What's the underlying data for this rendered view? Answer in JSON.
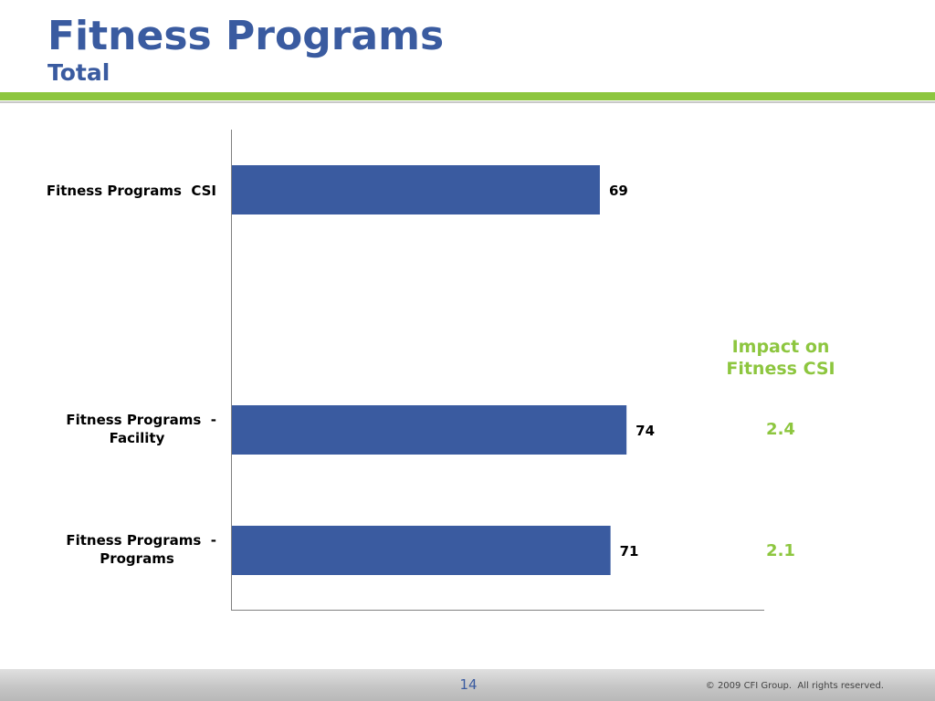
{
  "header": {
    "title": "Fitness Programs",
    "subtitle": "Total"
  },
  "chart_data": {
    "type": "bar",
    "orientation": "horizontal",
    "title": "Fitness Programs",
    "subtitle": "Total",
    "categories": [
      [
        "Fitness Programs  CSI"
      ],
      [
        "Fitness Programs  -",
        "Facility"
      ],
      [
        "Fitness Programs  -",
        "Programs"
      ]
    ],
    "values": [
      69,
      74,
      71
    ],
    "value_labels": [
      "69",
      "74",
      "71"
    ],
    "xlim": [
      0,
      100
    ],
    "bar_color": "#3A5BA0",
    "grid": false
  },
  "impact": {
    "title_line1": "Impact on",
    "title_line2": "Fitness CSI",
    "values": [
      "2.4",
      "2.1"
    ],
    "color": "#8DC63F"
  },
  "footer": {
    "page_number": "14",
    "copyright": "© 2009 CFI Group.  All rights reserved."
  }
}
